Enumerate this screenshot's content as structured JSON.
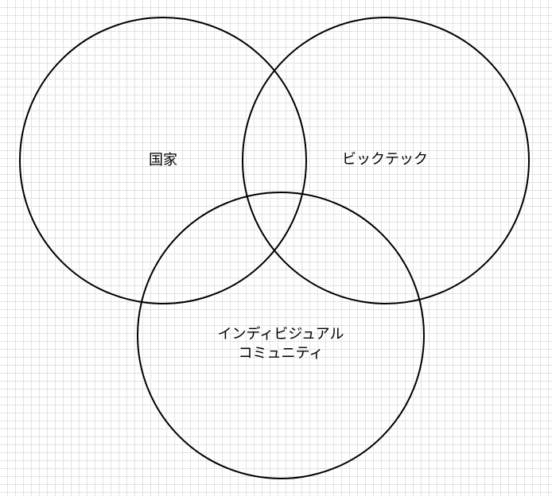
{
  "diagram": {
    "type": "venn",
    "stroke_color": "#000000",
    "grid_color": "#e2e2e2",
    "sets": [
      {
        "label": "国家"
      },
      {
        "label": "ビックテック"
      },
      {
        "label_lines": [
          "インディビジュアル",
          "コミュニティ"
        ]
      }
    ]
  }
}
